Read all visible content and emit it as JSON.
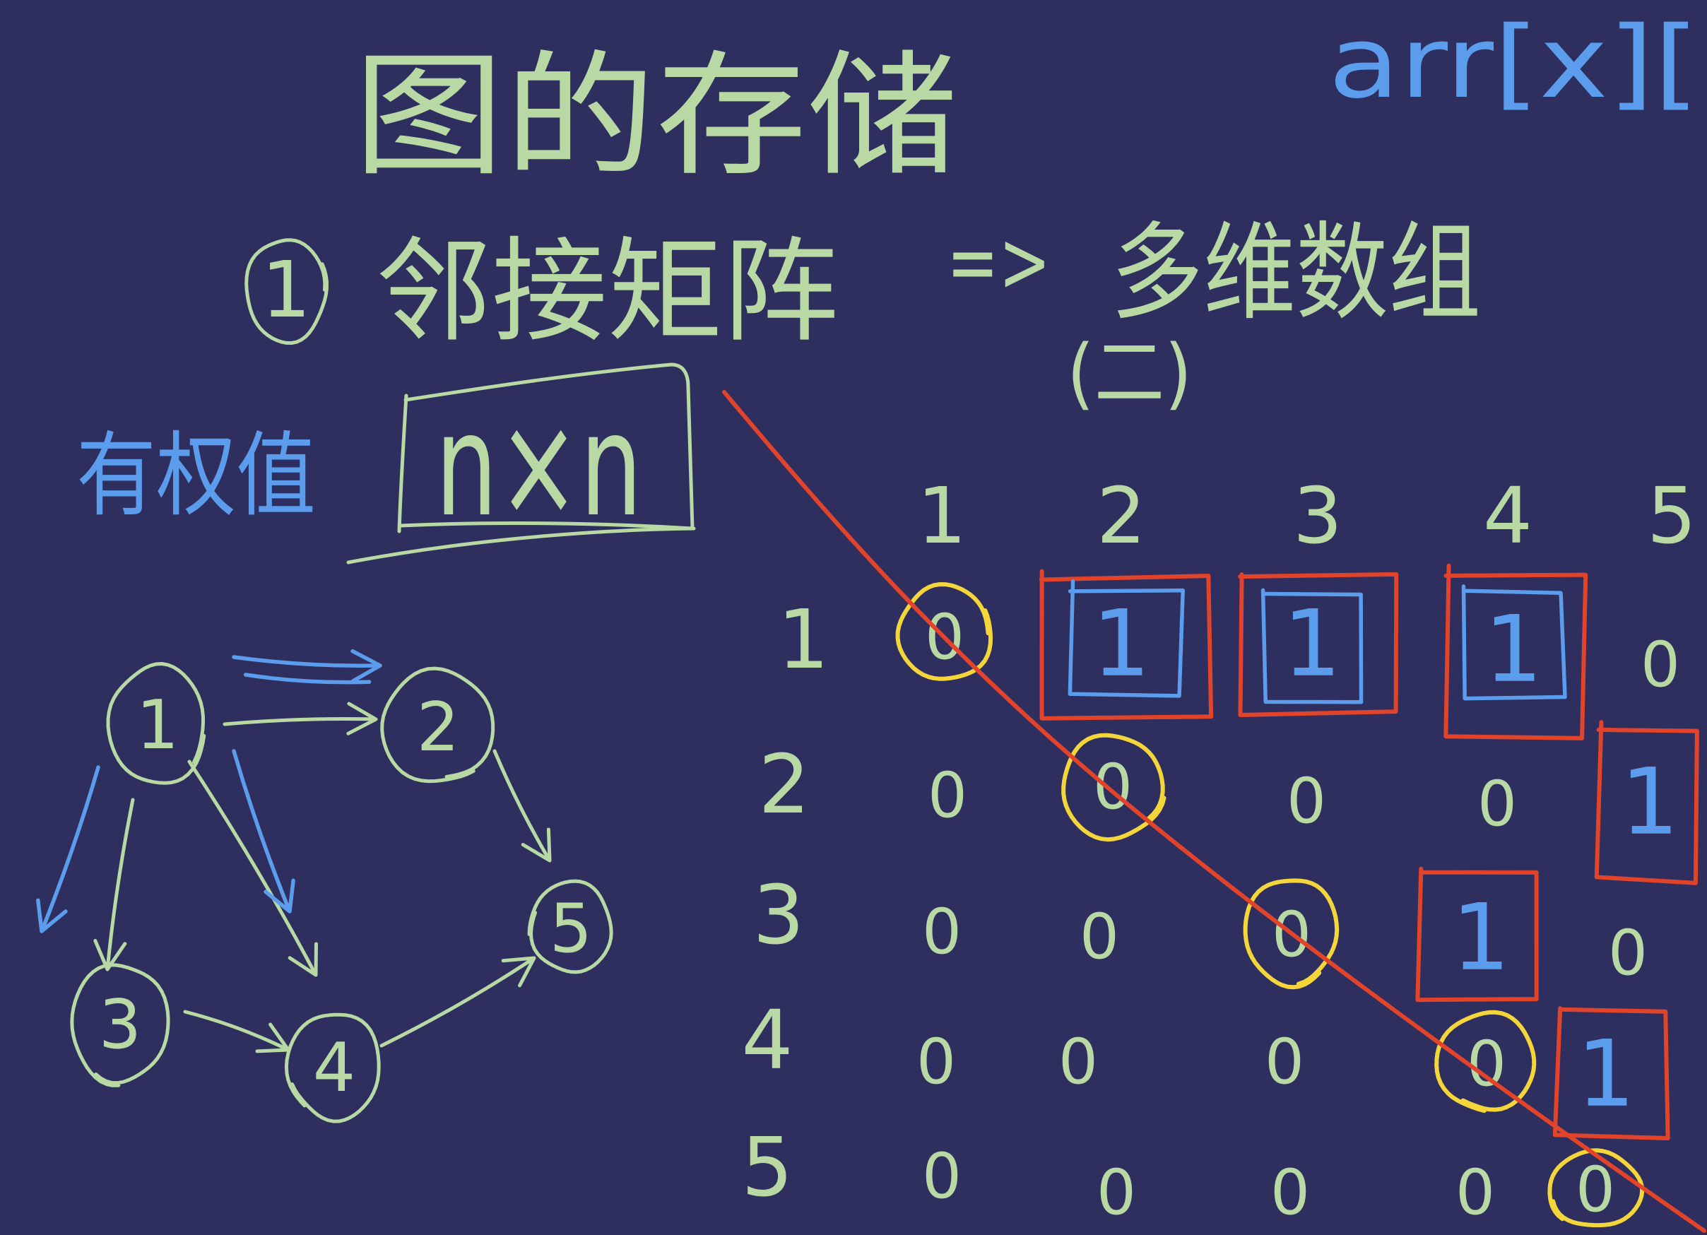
{
  "colors": {
    "background": "#2e2f5e",
    "chalk_green": "#b8d9a3",
    "chalk_blue": "#5b9cec",
    "marker_red": "#e2432b",
    "marker_yellow": "#f4d63b"
  },
  "title": "图的存储",
  "corner_note": "arr[x][",
  "heading": {
    "number": "1",
    "label": "邻接矩阵",
    "arrow": "=>",
    "target": "多维数组",
    "target_note": "(二)"
  },
  "weighted": {
    "label": "有权值",
    "size": "n×n"
  },
  "graph": {
    "nodes": [
      "1",
      "2",
      "3",
      "4",
      "5"
    ],
    "edges": [
      [
        1,
        2
      ],
      [
        1,
        3
      ],
      [
        1,
        4
      ],
      [
        2,
        5
      ],
      [
        3,
        4
      ],
      [
        4,
        5
      ]
    ],
    "highlighted_edges": [
      [
        1,
        2
      ],
      [
        1,
        3
      ],
      [
        1,
        4
      ]
    ]
  },
  "matrix": {
    "col_headers": [
      "1",
      "2",
      "3",
      "4",
      "5"
    ],
    "rows": [
      {
        "label": "1",
        "values": [
          "0",
          "1",
          "1",
          "1",
          "0"
        ]
      },
      {
        "label": "2",
        "values": [
          "0",
          "0",
          "0",
          "0",
          "1"
        ]
      },
      {
        "label": "3",
        "values": [
          "0",
          "0",
          "0",
          "1",
          "0"
        ]
      },
      {
        "label": "4",
        "values": [
          "0",
          "0",
          "0",
          "0",
          "1"
        ]
      },
      {
        "label": "5",
        "values": [
          "0",
          "0",
          "0",
          "0",
          "0"
        ]
      }
    ]
  }
}
